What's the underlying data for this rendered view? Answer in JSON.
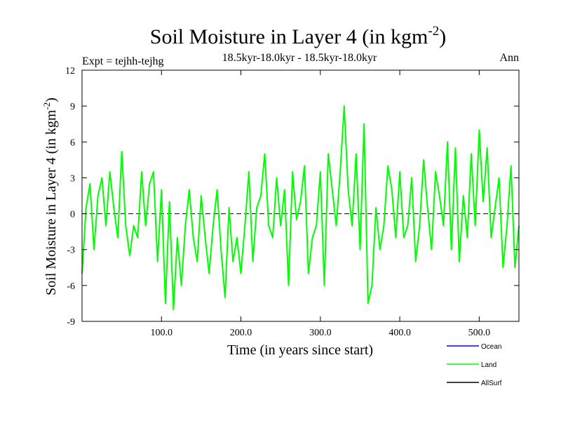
{
  "chart_data": {
    "type": "line",
    "title": "Soil Moisture in Layer 4 (in kgm",
    "title_sup": "-2",
    "title_close": ")",
    "subtitle": "18.5kyr-18.0kyr - 18.5kyr-18.0kyr",
    "left_label": "Expt = tejhh-tejhg",
    "right_label": "Ann",
    "xlabel": "Time (in years since start)",
    "ylabel": "Soil Moisture in Layer 4 (in kgm",
    "ylabel_sup": "-2",
    "ylabel_close": ")",
    "xlim": [
      0,
      550
    ],
    "ylim": [
      -9,
      12
    ],
    "x_ticks": [
      100,
      200,
      300,
      400,
      500
    ],
    "x_tick_labels": [
      "100.0",
      "200.0",
      "300.0",
      "400.0",
      "500.0"
    ],
    "y_ticks": [
      -9,
      -6,
      -3,
      0,
      3,
      6,
      9,
      12
    ],
    "y_tick_labels": [
      "-9",
      "-6",
      "-3",
      "0",
      "3",
      "6",
      "9",
      "12"
    ],
    "zero_line": "dashed",
    "legend_position": "bottom-right",
    "series": [
      {
        "name": "Ocean",
        "color": "#0000ff",
        "values": []
      },
      {
        "name": "Land",
        "color": "#00ff00",
        "x": [
          0,
          5,
          10,
          15,
          20,
          25,
          30,
          35,
          40,
          45,
          50,
          55,
          60,
          65,
          70,
          75,
          80,
          85,
          90,
          95,
          100,
          105,
          110,
          115,
          120,
          125,
          130,
          135,
          140,
          145,
          150,
          155,
          160,
          165,
          170,
          175,
          180,
          185,
          190,
          195,
          200,
          205,
          210,
          215,
          220,
          225,
          230,
          235,
          240,
          245,
          250,
          255,
          260,
          265,
          270,
          275,
          280,
          285,
          290,
          295,
          300,
          305,
          310,
          315,
          320,
          325,
          330,
          335,
          340,
          345,
          350,
          355,
          360,
          365,
          370,
          375,
          380,
          385,
          390,
          395,
          400,
          405,
          410,
          415,
          420,
          425,
          430,
          435,
          440,
          445,
          450,
          455,
          460,
          465,
          470,
          475,
          480,
          485,
          490,
          495,
          500,
          505,
          510,
          515,
          520,
          525,
          530,
          535,
          540,
          545,
          550
        ],
        "values": [
          -5,
          0.5,
          2.5,
          -3,
          1.5,
          3,
          -1,
          3.5,
          0.5,
          -2,
          5.2,
          -1,
          -3.5,
          -1,
          -2,
          3.5,
          -1,
          2.5,
          3.5,
          -4,
          2,
          -7.5,
          1,
          -8,
          -2,
          -6,
          -1,
          2,
          -2,
          -4,
          1.5,
          -2,
          -5,
          -1,
          2,
          -3,
          -7,
          0.5,
          -4,
          -2,
          -5,
          -1,
          3.5,
          -4,
          0.5,
          1.5,
          5,
          -1,
          -2,
          3,
          -1,
          2,
          -6,
          3.5,
          -0.5,
          1,
          4,
          -5,
          -2,
          -1,
          3.5,
          -6,
          5,
          2,
          -1,
          3.5,
          9,
          2,
          -1,
          5,
          -3,
          7.5,
          -7.5,
          -6,
          0.5,
          -3,
          -1,
          4,
          2,
          -2,
          3.5,
          -2,
          -1,
          3,
          -4,
          -1,
          4.5,
          0.5,
          -3,
          3.5,
          1.5,
          -1,
          6,
          -3,
          5.5,
          -4,
          1.5,
          -2,
          5,
          -1,
          7,
          1,
          5.5,
          -2,
          0.5,
          3,
          -4.5,
          -1,
          4,
          -4.5,
          -1
        ]
      },
      {
        "name": "AllSurf",
        "color": "#000000",
        "values": []
      }
    ]
  }
}
